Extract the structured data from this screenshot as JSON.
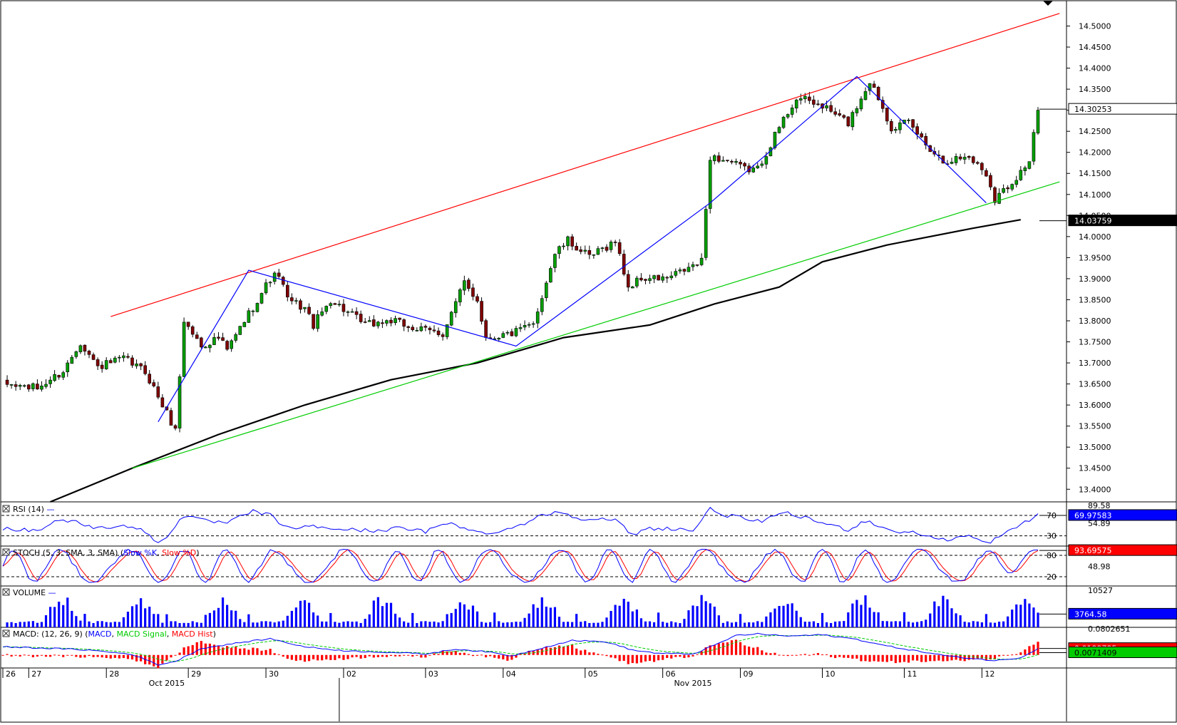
{
  "chart_data": {
    "type": "candlestick",
    "price_axis": {
      "ylim": [
        13.37,
        14.555
      ],
      "ticks": [
        "14.5000",
        "14.4500",
        "14.4000",
        "14.3500",
        "14.3000",
        "14.2500",
        "14.2000",
        "14.1500",
        "14.1000",
        "14.0500",
        "14.0000",
        "13.9500",
        "13.9000",
        "13.8500",
        "13.8000",
        "13.7500",
        "13.7000",
        "13.6500",
        "13.6000",
        "13.5500",
        "13.5000",
        "13.4500",
        "13.4000"
      ],
      "last_price": {
        "label": "14.30253",
        "value": 14.30253
      },
      "ma_label": {
        "label": "14.03759",
        "value": 14.03759
      }
    },
    "candle_count": 240,
    "candle_anchors": [
      [
        0,
        13.65
      ],
      [
        8,
        13.64
      ],
      [
        14,
        13.68
      ],
      [
        18,
        13.75
      ],
      [
        22,
        13.69
      ],
      [
        28,
        13.71
      ],
      [
        33,
        13.68
      ],
      [
        38,
        13.58
      ],
      [
        40,
        13.54
      ],
      [
        42,
        13.8
      ],
      [
        46,
        13.74
      ],
      [
        50,
        13.76
      ],
      [
        52,
        13.73
      ],
      [
        56,
        13.8
      ],
      [
        62,
        13.9
      ],
      [
        64,
        13.91
      ],
      [
        66,
        13.85
      ],
      [
        70,
        13.83
      ],
      [
        72,
        13.79
      ],
      [
        76,
        13.85
      ],
      [
        80,
        13.82
      ],
      [
        84,
        13.79
      ],
      [
        90,
        13.8
      ],
      [
        96,
        13.78
      ],
      [
        102,
        13.77
      ],
      [
        107,
        13.89
      ],
      [
        110,
        13.85
      ],
      [
        112,
        13.76
      ],
      [
        118,
        13.77
      ],
      [
        123,
        13.79
      ],
      [
        125,
        13.86
      ],
      [
        128,
        13.96
      ],
      [
        131,
        13.99
      ],
      [
        136,
        13.95
      ],
      [
        142,
        13.99
      ],
      [
        145,
        13.88
      ],
      [
        148,
        13.9
      ],
      [
        154,
        13.9
      ],
      [
        158,
        13.92
      ],
      [
        162,
        13.94
      ],
      [
        164,
        14.19
      ],
      [
        168,
        14.18
      ],
      [
        172,
        14.16
      ],
      [
        175,
        14.16
      ],
      [
        180,
        14.26
      ],
      [
        184,
        14.33
      ],
      [
        190,
        14.31
      ],
      [
        196,
        14.27
      ],
      [
        201,
        14.37
      ],
      [
        203,
        14.33
      ],
      [
        206,
        14.26
      ],
      [
        210,
        14.27
      ],
      [
        214,
        14.22
      ],
      [
        218,
        14.18
      ],
      [
        224,
        14.19
      ],
      [
        228,
        14.15
      ],
      [
        230,
        14.09
      ],
      [
        234,
        14.13
      ],
      [
        238,
        14.18
      ],
      [
        240,
        14.3
      ]
    ],
    "date_labels": [
      {
        "text": "26",
        "i": 0
      },
      {
        "text": "27",
        "i": 6
      },
      {
        "text": "28",
        "i": 24
      },
      {
        "text": "29",
        "i": 43
      },
      {
        "text": "30",
        "i": 61
      },
      {
        "text": "02",
        "i": 79
      },
      {
        "text": "03",
        "i": 98
      },
      {
        "text": "04",
        "i": 116
      },
      {
        "text": "05",
        "i": 135
      },
      {
        "text": "06",
        "i": 153
      },
      {
        "text": "09",
        "i": 171
      },
      {
        "text": "10",
        "i": 190
      },
      {
        "text": "11",
        "i": 209
      },
      {
        "text": "12",
        "i": 227
      }
    ],
    "month_labels": [
      {
        "text": "Oct 2015",
        "i": 38
      },
      {
        "text": "Nov 2015",
        "i": 160
      }
    ],
    "trendlines": {
      "red_channel": {
        "from": [
          25,
          13.81
        ],
        "to": [
          245,
          14.53
        ],
        "color": "#ff0000"
      },
      "green_support": {
        "from": [
          30,
          13.45
        ],
        "to": [
          245,
          14.13
        ],
        "color": "#00cc00"
      },
      "blue_pattern": {
        "points": [
          [
            36,
            13.56
          ],
          [
            57,
            13.92
          ],
          [
            119,
            13.74
          ],
          [
            164,
            14.08
          ],
          [
            198,
            14.38
          ],
          [
            228,
            14.08
          ]
        ],
        "color": "#0000ff"
      }
    },
    "moving_average": {
      "color": "#000000",
      "points": [
        [
          11,
          13.37
        ],
        [
          30,
          13.45
        ],
        [
          50,
          13.53
        ],
        [
          70,
          13.6
        ],
        [
          90,
          13.66
        ],
        [
          110,
          13.7
        ],
        [
          130,
          13.76
        ],
        [
          150,
          13.79
        ],
        [
          165,
          13.84
        ],
        [
          180,
          13.88
        ],
        [
          190,
          13.94
        ],
        [
          205,
          13.98
        ],
        [
          225,
          14.02
        ],
        [
          236,
          14.04
        ]
      ]
    },
    "rsi": {
      "title": "RSI (14)",
      "ylim": [
        10,
        95
      ],
      "levels": [
        {
          "v": 70,
          "label": "70"
        },
        {
          "v": 30,
          "label": "30"
        }
      ],
      "axis_labels": [
        {
          "v": 89.58,
          "label": "89.58"
        },
        {
          "v": 54.89,
          "label": "54.89"
        }
      ],
      "last": {
        "label": "69.97583",
        "value": 69.97583
      },
      "anchors": [
        [
          0,
          45
        ],
        [
          8,
          40
        ],
        [
          12,
          58
        ],
        [
          16,
          60
        ],
        [
          22,
          44
        ],
        [
          28,
          52
        ],
        [
          33,
          38
        ],
        [
          36,
          15
        ],
        [
          38,
          30
        ],
        [
          42,
          70
        ],
        [
          46,
          60
        ],
        [
          52,
          55
        ],
        [
          58,
          78
        ],
        [
          62,
          70
        ],
        [
          66,
          45
        ],
        [
          72,
          48
        ],
        [
          80,
          42
        ],
        [
          86,
          40
        ],
        [
          92,
          45
        ],
        [
          98,
          38
        ],
        [
          104,
          58
        ],
        [
          108,
          40
        ],
        [
          112,
          35
        ],
        [
          118,
          45
        ],
        [
          124,
          66
        ],
        [
          128,
          78
        ],
        [
          134,
          65
        ],
        [
          142,
          60
        ],
        [
          146,
          32
        ],
        [
          150,
          45
        ],
        [
          156,
          44
        ],
        [
          160,
          40
        ],
        [
          164,
          82
        ],
        [
          168,
          70
        ],
        [
          175,
          58
        ],
        [
          182,
          74
        ],
        [
          188,
          60
        ],
        [
          196,
          42
        ],
        [
          200,
          60
        ],
        [
          206,
          40
        ],
        [
          212,
          35
        ],
        [
          218,
          22
        ],
        [
          224,
          30
        ],
        [
          228,
          15
        ],
        [
          232,
          32
        ],
        [
          238,
          62
        ],
        [
          240,
          70
        ]
      ]
    },
    "stoch": {
      "title": "STOCH (5, 3, SMA, 3, SMA)",
      "k_name": "Slow %K",
      "d_name": "Slow %D",
      "ylim": [
        0,
        100
      ],
      "levels": [
        {
          "v": 80,
          "label": "80"
        },
        {
          "v": 20,
          "label": "20"
        }
      ],
      "axis_labels": [
        {
          "v": 48.98,
          "label": "48.98"
        }
      ],
      "last": {
        "label": "93.69575",
        "value": 93.69575
      },
      "period": 6.2,
      "final_k": 95
    },
    "volume": {
      "title": "VOLUME",
      "ymax": 10527,
      "axis_labels": [
        {
          "v": 10527,
          "label": "10527"
        }
      ],
      "last": {
        "label": "3764.58",
        "value": 3764.58
      },
      "color": "#0000ff"
    },
    "macd": {
      "title": "MACD",
      "params": "(12, 26, 9)",
      "macd_name": "MACD",
      "signal_name": "MACD Signal",
      "hist_name": "MACD Hist",
      "ylim": [
        -0.04,
        0.085
      ],
      "axis_labels": [
        {
          "v": 0.0802651,
          "label": "0.0802651"
        }
      ],
      "last_macd": {
        "label": "0.0199795",
        "value": 0.0199795
      },
      "last_signal": {
        "label": "0.0071409",
        "value": 0.0071409
      },
      "anchors": [
        [
          0,
          0.025
        ],
        [
          12,
          0.02
        ],
        [
          20,
          0.015
        ],
        [
          30,
          0.002
        ],
        [
          36,
          -0.03
        ],
        [
          40,
          -0.02
        ],
        [
          46,
          0.02
        ],
        [
          56,
          0.04
        ],
        [
          62,
          0.05
        ],
        [
          70,
          0.025
        ],
        [
          80,
          0.012
        ],
        [
          90,
          0.008
        ],
        [
          98,
          0.003
        ],
        [
          105,
          0.018
        ],
        [
          112,
          0.01
        ],
        [
          118,
          -0.003
        ],
        [
          126,
          0.025
        ],
        [
          132,
          0.045
        ],
        [
          140,
          0.04
        ],
        [
          146,
          0.015
        ],
        [
          152,
          0.005
        ],
        [
          160,
          0.003
        ],
        [
          165,
          0.03
        ],
        [
          170,
          0.06
        ],
        [
          175,
          0.065
        ],
        [
          182,
          0.058
        ],
        [
          190,
          0.062
        ],
        [
          198,
          0.048
        ],
        [
          204,
          0.03
        ],
        [
          212,
          0.012
        ],
        [
          220,
          -0.005
        ],
        [
          226,
          -0.012
        ],
        [
          230,
          -0.018
        ],
        [
          236,
          -0.008
        ],
        [
          240,
          0.02
        ]
      ]
    }
  }
}
